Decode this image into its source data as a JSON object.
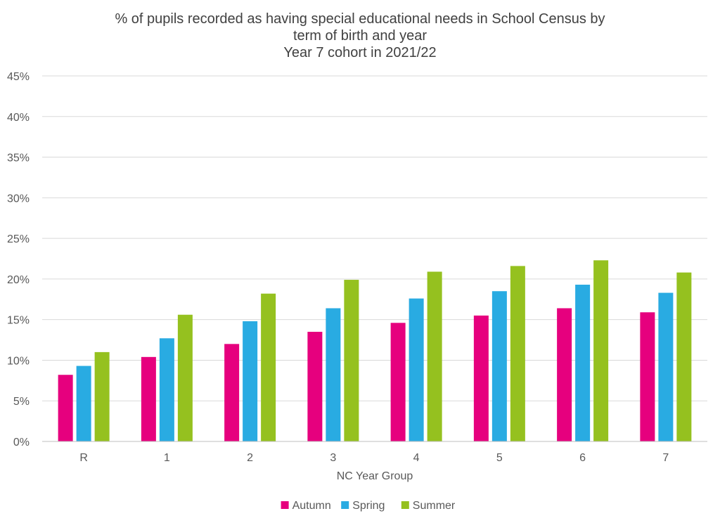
{
  "chart_data": {
    "type": "bar",
    "title": [
      "% of pupils recorded as having special educational needs in School Census by",
      "term of birth and year",
      "Year 7 cohort in 2021/22"
    ],
    "xlabel": "NC Year Group",
    "ylabel": "",
    "categories": [
      "R",
      "1",
      "2",
      "3",
      "4",
      "5",
      "6",
      "7"
    ],
    "ylim": [
      0,
      45
    ],
    "yticks": [
      0,
      5,
      10,
      15,
      20,
      25,
      30,
      35,
      40,
      45
    ],
    "ytick_labels": [
      "0%",
      "5%",
      "10%",
      "15%",
      "20%",
      "25%",
      "30%",
      "35%",
      "40%",
      "45%"
    ],
    "grid": true,
    "legend_position": "bottom",
    "series": [
      {
        "name": "Autumn",
        "color": "#e6007e",
        "values": [
          8.2,
          10.4,
          12.0,
          13.5,
          14.6,
          15.5,
          16.4,
          15.9
        ]
      },
      {
        "name": "Spring",
        "color": "#29abe2",
        "values": [
          9.3,
          12.7,
          14.8,
          16.4,
          17.6,
          18.5,
          19.3,
          18.3
        ]
      },
      {
        "name": "Summer",
        "color": "#95c11f",
        "values": [
          11.0,
          15.6,
          18.2,
          19.9,
          20.9,
          21.6,
          22.3,
          20.8
        ]
      }
    ]
  }
}
